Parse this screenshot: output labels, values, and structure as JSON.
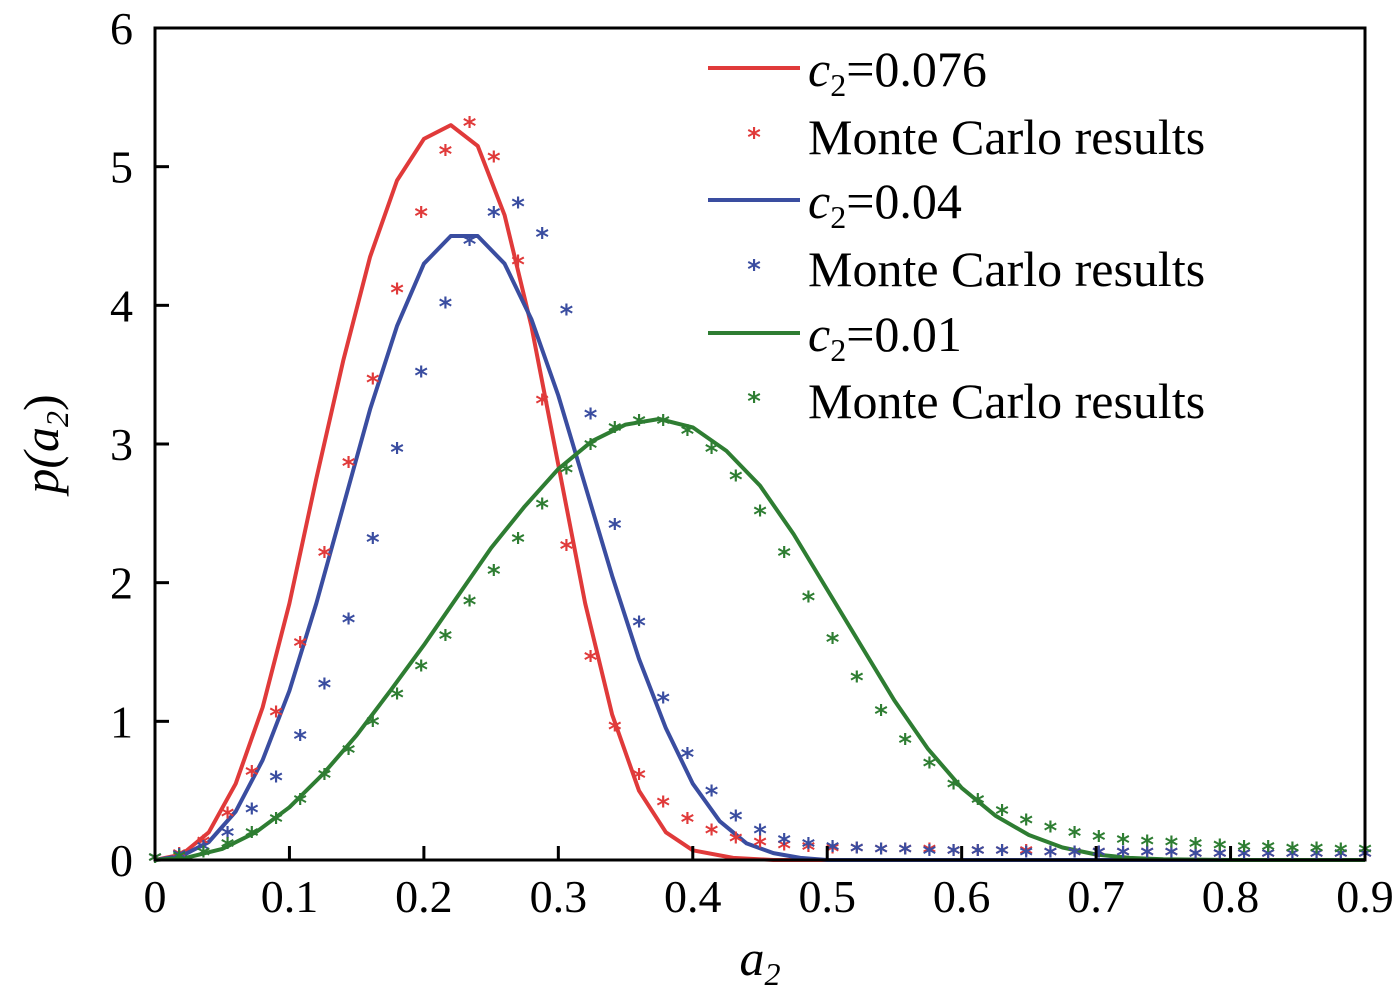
{
  "chart_data": {
    "type": "line",
    "title": "",
    "xlabel": "a",
    "xlabel_sub": "2",
    "ylabel_prefix": "p(",
    "ylabel_var": "a",
    "ylabel_sub": "2",
    "ylabel_suffix": ")",
    "xlim": [
      0,
      0.9
    ],
    "ylim": [
      0,
      6
    ],
    "xticks": [
      "0",
      "0.1",
      "0.2",
      "0.3",
      "0.4",
      "0.5",
      "0.6",
      "0.7",
      "0.8",
      "0.9"
    ],
    "yticks": [
      "0",
      "1",
      "2",
      "3",
      "4",
      "5",
      "6"
    ],
    "grid": false,
    "legend_position": "top-right",
    "series": [
      {
        "name_var": "c",
        "name_sub": "2",
        "name_rest": "=0.076",
        "mc_label": "Monte Carlo results",
        "color": "#e03a3a",
        "curve": [
          [
            0,
            0
          ],
          [
            0.02,
            0.04
          ],
          [
            0.04,
            0.2
          ],
          [
            0.06,
            0.55
          ],
          [
            0.08,
            1.1
          ],
          [
            0.1,
            1.85
          ],
          [
            0.12,
            2.75
          ],
          [
            0.14,
            3.6
          ],
          [
            0.16,
            4.35
          ],
          [
            0.18,
            4.9
          ],
          [
            0.2,
            5.2
          ],
          [
            0.22,
            5.3
          ],
          [
            0.24,
            5.15
          ],
          [
            0.26,
            4.65
          ],
          [
            0.28,
            3.85
          ],
          [
            0.3,
            2.85
          ],
          [
            0.32,
            1.85
          ],
          [
            0.34,
            1.05
          ],
          [
            0.36,
            0.5
          ],
          [
            0.38,
            0.2
          ],
          [
            0.4,
            0.07
          ],
          [
            0.43,
            0.015
          ],
          [
            0.46,
            0.0
          ],
          [
            0.9,
            0.0
          ]
        ],
        "mc": [
          [
            0,
            0
          ],
          [
            0.018,
            0.03
          ],
          [
            0.036,
            0.12
          ],
          [
            0.054,
            0.32
          ],
          [
            0.072,
            0.62
          ],
          [
            0.09,
            1.05
          ],
          [
            0.108,
            1.55
          ],
          [
            0.126,
            2.2
          ],
          [
            0.144,
            2.85
          ],
          [
            0.162,
            3.45
          ],
          [
            0.18,
            4.1
          ],
          [
            0.198,
            4.65
          ],
          [
            0.216,
            5.1
          ],
          [
            0.234,
            5.3
          ],
          [
            0.252,
            5.05
          ],
          [
            0.27,
            4.3
          ],
          [
            0.288,
            3.3
          ],
          [
            0.306,
            2.25
          ],
          [
            0.324,
            1.45
          ],
          [
            0.342,
            0.95
          ],
          [
            0.36,
            0.6
          ],
          [
            0.378,
            0.4
          ],
          [
            0.396,
            0.28
          ],
          [
            0.414,
            0.2
          ],
          [
            0.432,
            0.14
          ],
          [
            0.45,
            0.11
          ],
          [
            0.468,
            0.09
          ],
          [
            0.486,
            0.08
          ],
          [
            0.504,
            0.07
          ],
          [
            0.522,
            0.07
          ],
          [
            0.54,
            0.06
          ],
          [
            0.558,
            0.06
          ],
          [
            0.576,
            0.06
          ],
          [
            0.594,
            0.05
          ],
          [
            0.612,
            0.05
          ],
          [
            0.63,
            0.05
          ],
          [
            0.648,
            0.05
          ],
          [
            0.666,
            0.04
          ],
          [
            0.684,
            0.04
          ],
          [
            0.702,
            0.04
          ],
          [
            0.72,
            0.04
          ],
          [
            0.738,
            0.04
          ],
          [
            0.756,
            0.04
          ],
          [
            0.774,
            0.03
          ],
          [
            0.792,
            0.03
          ],
          [
            0.81,
            0.03
          ],
          [
            0.828,
            0.03
          ],
          [
            0.846,
            0.03
          ],
          [
            0.864,
            0.03
          ],
          [
            0.882,
            0.03
          ],
          [
            0.9,
            0.03
          ]
        ]
      },
      {
        "name_var": "c",
        "name_sub": "2",
        "name_rest": "=0.04",
        "mc_label": "Monte Carlo results",
        "color": "#3a4da0",
        "curve": [
          [
            0,
            0
          ],
          [
            0.02,
            0.03
          ],
          [
            0.04,
            0.13
          ],
          [
            0.06,
            0.35
          ],
          [
            0.08,
            0.72
          ],
          [
            0.1,
            1.22
          ],
          [
            0.12,
            1.85
          ],
          [
            0.14,
            2.55
          ],
          [
            0.16,
            3.25
          ],
          [
            0.18,
            3.85
          ],
          [
            0.2,
            4.3
          ],
          [
            0.22,
            4.5
          ],
          [
            0.24,
            4.5
          ],
          [
            0.26,
            4.3
          ],
          [
            0.28,
            3.9
          ],
          [
            0.3,
            3.35
          ],
          [
            0.32,
            2.7
          ],
          [
            0.34,
            2.05
          ],
          [
            0.36,
            1.45
          ],
          [
            0.38,
            0.95
          ],
          [
            0.4,
            0.55
          ],
          [
            0.42,
            0.28
          ],
          [
            0.44,
            0.12
          ],
          [
            0.46,
            0.05
          ],
          [
            0.48,
            0.015
          ],
          [
            0.5,
            0.0
          ],
          [
            0.9,
            0.0
          ]
        ],
        "mc": [
          [
            0,
            0
          ],
          [
            0.018,
            0.02
          ],
          [
            0.036,
            0.08
          ],
          [
            0.054,
            0.18
          ],
          [
            0.072,
            0.35
          ],
          [
            0.09,
            0.58
          ],
          [
            0.108,
            0.88
          ],
          [
            0.126,
            1.25
          ],
          [
            0.144,
            1.72
          ],
          [
            0.162,
            2.3
          ],
          [
            0.18,
            2.95
          ],
          [
            0.198,
            3.5
          ],
          [
            0.216,
            4.0
          ],
          [
            0.234,
            4.45
          ],
          [
            0.252,
            4.65
          ],
          [
            0.27,
            4.72
          ],
          [
            0.288,
            4.5
          ],
          [
            0.306,
            3.95
          ],
          [
            0.324,
            3.2
          ],
          [
            0.342,
            2.4
          ],
          [
            0.36,
            1.7
          ],
          [
            0.378,
            1.15
          ],
          [
            0.396,
            0.75
          ],
          [
            0.414,
            0.48
          ],
          [
            0.432,
            0.3
          ],
          [
            0.45,
            0.2
          ],
          [
            0.468,
            0.13
          ],
          [
            0.486,
            0.1
          ],
          [
            0.504,
            0.08
          ],
          [
            0.522,
            0.07
          ],
          [
            0.54,
            0.06
          ],
          [
            0.558,
            0.06
          ],
          [
            0.576,
            0.05
          ],
          [
            0.594,
            0.05
          ],
          [
            0.612,
            0.05
          ],
          [
            0.63,
            0.05
          ],
          [
            0.648,
            0.04
          ],
          [
            0.666,
            0.04
          ],
          [
            0.684,
            0.04
          ],
          [
            0.702,
            0.04
          ],
          [
            0.72,
            0.04
          ],
          [
            0.738,
            0.04
          ],
          [
            0.756,
            0.04
          ],
          [
            0.774,
            0.03
          ],
          [
            0.792,
            0.03
          ],
          [
            0.81,
            0.03
          ],
          [
            0.828,
            0.03
          ],
          [
            0.846,
            0.03
          ],
          [
            0.864,
            0.03
          ],
          [
            0.882,
            0.03
          ],
          [
            0.9,
            0.03
          ]
        ]
      },
      {
        "name_var": "c",
        "name_sub": "2",
        "name_rest": "=0.01",
        "mc_label": "Monte Carlo results",
        "color": "#2e7d32",
        "curve": [
          [
            0,
            0
          ],
          [
            0.025,
            0.02
          ],
          [
            0.05,
            0.08
          ],
          [
            0.075,
            0.2
          ],
          [
            0.1,
            0.38
          ],
          [
            0.125,
            0.62
          ],
          [
            0.15,
            0.9
          ],
          [
            0.175,
            1.22
          ],
          [
            0.2,
            1.55
          ],
          [
            0.225,
            1.9
          ],
          [
            0.25,
            2.25
          ],
          [
            0.275,
            2.55
          ],
          [
            0.3,
            2.82
          ],
          [
            0.325,
            3.02
          ],
          [
            0.35,
            3.14
          ],
          [
            0.375,
            3.18
          ],
          [
            0.4,
            3.12
          ],
          [
            0.425,
            2.95
          ],
          [
            0.45,
            2.7
          ],
          [
            0.475,
            2.35
          ],
          [
            0.5,
            1.95
          ],
          [
            0.525,
            1.55
          ],
          [
            0.55,
            1.15
          ],
          [
            0.575,
            0.8
          ],
          [
            0.6,
            0.52
          ],
          [
            0.625,
            0.32
          ],
          [
            0.65,
            0.18
          ],
          [
            0.675,
            0.09
          ],
          [
            0.7,
            0.04
          ],
          [
            0.725,
            0.015
          ],
          [
            0.75,
            0.005
          ],
          [
            0.8,
            0.0
          ],
          [
            0.9,
            0.0
          ]
        ],
        "mc": [
          [
            0,
            0
          ],
          [
            0.018,
            0.01
          ],
          [
            0.036,
            0.04
          ],
          [
            0.054,
            0.1
          ],
          [
            0.072,
            0.18
          ],
          [
            0.09,
            0.28
          ],
          [
            0.108,
            0.42
          ],
          [
            0.126,
            0.6
          ],
          [
            0.144,
            0.78
          ],
          [
            0.162,
            0.98
          ],
          [
            0.18,
            1.18
          ],
          [
            0.198,
            1.38
          ],
          [
            0.216,
            1.6
          ],
          [
            0.234,
            1.85
          ],
          [
            0.252,
            2.07
          ],
          [
            0.27,
            2.3
          ],
          [
            0.288,
            2.55
          ],
          [
            0.306,
            2.8
          ],
          [
            0.324,
            2.98
          ],
          [
            0.342,
            3.1
          ],
          [
            0.36,
            3.15
          ],
          [
            0.378,
            3.15
          ],
          [
            0.396,
            3.08
          ],
          [
            0.414,
            2.95
          ],
          [
            0.432,
            2.75
          ],
          [
            0.45,
            2.5
          ],
          [
            0.468,
            2.2
          ],
          [
            0.486,
            1.88
          ],
          [
            0.504,
            1.58
          ],
          [
            0.522,
            1.3
          ],
          [
            0.54,
            1.06
          ],
          [
            0.558,
            0.85
          ],
          [
            0.576,
            0.68
          ],
          [
            0.594,
            0.53
          ],
          [
            0.612,
            0.42
          ],
          [
            0.63,
            0.34
          ],
          [
            0.648,
            0.27
          ],
          [
            0.666,
            0.22
          ],
          [
            0.684,
            0.18
          ],
          [
            0.702,
            0.15
          ],
          [
            0.72,
            0.13
          ],
          [
            0.738,
            0.12
          ],
          [
            0.756,
            0.11
          ],
          [
            0.774,
            0.1
          ],
          [
            0.792,
            0.09
          ],
          [
            0.81,
            0.08
          ],
          [
            0.828,
            0.08
          ],
          [
            0.846,
            0.07
          ],
          [
            0.864,
            0.07
          ],
          [
            0.882,
            0.06
          ],
          [
            0.9,
            0.06
          ]
        ]
      }
    ]
  }
}
